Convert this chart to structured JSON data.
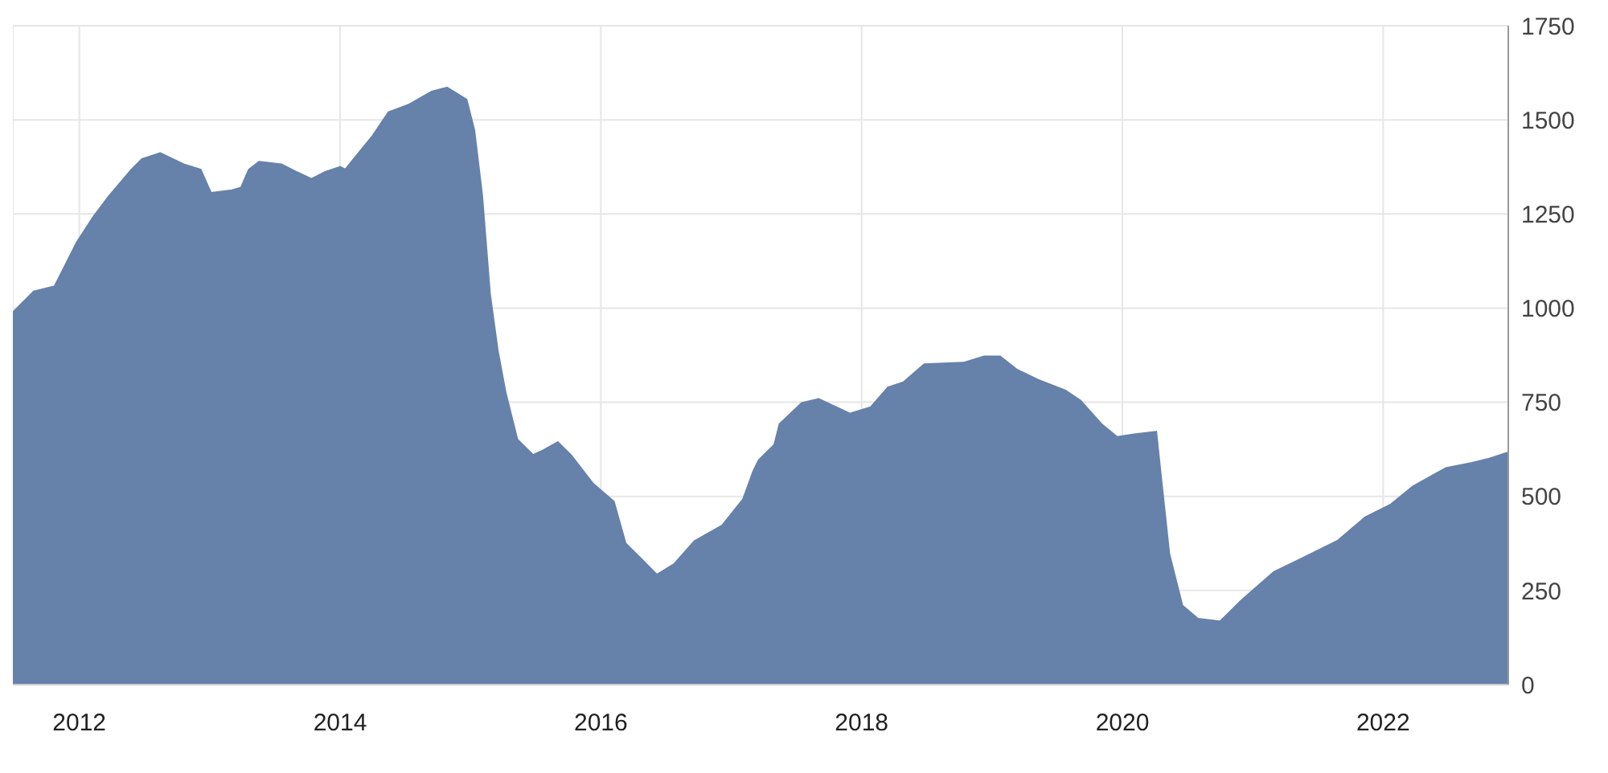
{
  "chart_data": {
    "type": "area",
    "x": [
      2011.49,
      2011.65,
      2011.81,
      2011.88,
      2011.98,
      2012.11,
      2012.23,
      2012.4,
      2012.48,
      2012.62,
      2012.8,
      2012.93,
      2013.01,
      2013.17,
      2013.24,
      2013.3,
      2013.38,
      2013.55,
      2013.67,
      2013.78,
      2013.88,
      2014.0,
      2014.04,
      2014.12,
      2014.25,
      2014.37,
      2014.53,
      2014.7,
      2014.82,
      2014.97,
      2015.03,
      2015.09,
      2015.15,
      2015.21,
      2015.27,
      2015.36,
      2015.48,
      2015.56,
      2015.67,
      2015.77,
      2015.94,
      2016.1,
      2016.19,
      2016.31,
      2016.43,
      2016.56,
      2016.72,
      2016.93,
      2017.09,
      2017.17,
      2017.21,
      2017.33,
      2017.37,
      2017.54,
      2017.67,
      2017.91,
      2018.07,
      2018.2,
      2018.32,
      2018.48,
      2018.78,
      2018.94,
      2019.06,
      2019.19,
      2019.35,
      2019.56,
      2019.68,
      2019.84,
      2019.96,
      2020.09,
      2020.26,
      2020.3,
      2020.36,
      2020.46,
      2020.58,
      2020.75,
      2020.91,
      2021.16,
      2021.37,
      2021.65,
      2021.86,
      2022.06,
      2022.23,
      2022.48,
      2022.68,
      2022.8,
      2022.96
    ],
    "series": [
      {
        "color": "#6682aa",
        "values": [
          989,
          1044,
          1058,
          1106,
          1175,
          1244,
          1299,
          1368,
          1396,
          1412,
          1382,
          1368,
          1306,
          1313,
          1320,
          1368,
          1389,
          1382,
          1361,
          1343,
          1361,
          1375,
          1368,
          1403,
          1458,
          1520,
          1541,
          1575,
          1586,
          1554,
          1472,
          1299,
          1037,
          886,
          775,
          651,
          610,
          623,
          644,
          610,
          534,
          486,
          375,
          334,
          292,
          320,
          382,
          423,
          492,
          568,
          596,
          637,
          692,
          748,
          759,
          720,
          737,
          789,
          803,
          851,
          855,
          872,
          872,
          837,
          810,
          782,
          754,
          692,
          658,
          665,
          672,
          541,
          348,
          210,
          175,
          168,
          223,
          299,
          334,
          382,
          444,
          479,
          527,
          575,
          589,
          599,
          617
        ]
      }
    ],
    "xlim": [
      2011.49,
      2022.96
    ],
    "xticks": [
      2012,
      2014,
      2016,
      2018,
      2020,
      2022
    ],
    "ylim": [
      0,
      1750
    ],
    "yticks": [
      0,
      250,
      500,
      750,
      1000,
      1250,
      1500,
      1750
    ],
    "grid": true
  }
}
